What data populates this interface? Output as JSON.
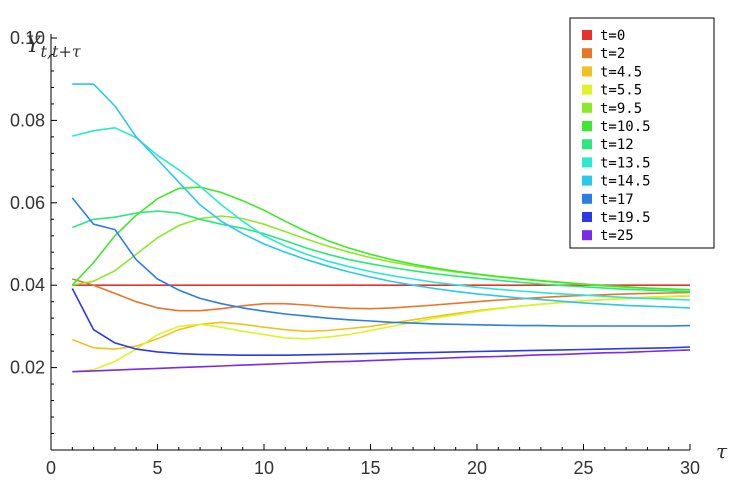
{
  "chart_data": {
    "type": "line",
    "ylabel": "Y",
    "ylabel_sub": "t,t+τ",
    "xlabel": "τ",
    "xlim": [
      0,
      30
    ],
    "ylim": [
      0,
      0.1
    ],
    "xticks": [
      0,
      5,
      10,
      15,
      20,
      25,
      30
    ],
    "yticks": [
      0.02,
      0.04,
      0.06,
      0.08,
      0.1
    ],
    "ytick_labels": [
      "0.02",
      "0.04",
      "0.06",
      "0.08",
      "0.10"
    ],
    "grid": false,
    "legend_position": "top-right",
    "x": [
      1,
      2,
      3,
      4,
      5,
      6,
      7,
      8,
      9,
      10,
      11,
      12,
      13,
      14,
      15,
      16,
      17,
      18,
      19,
      20,
      21,
      22,
      23,
      24,
      25,
      26,
      27,
      28,
      29,
      30
    ],
    "series": [
      {
        "name": "t=0",
        "color": "#e8312a",
        "values": [
          0.04,
          0.04,
          0.04,
          0.04,
          0.04,
          0.04,
          0.04,
          0.04,
          0.04,
          0.04,
          0.04,
          0.04,
          0.04,
          0.04,
          0.04,
          0.04,
          0.04,
          0.04,
          0.04,
          0.04,
          0.04,
          0.04,
          0.04,
          0.04,
          0.04,
          0.04,
          0.04,
          0.04,
          0.04,
          0.04
        ]
      },
      {
        "name": "t=2",
        "color": "#e8762a",
        "values": [
          0.0415,
          0.04,
          0.038,
          0.036,
          0.0345,
          0.0338,
          0.0338,
          0.0343,
          0.035,
          0.0355,
          0.0355,
          0.0352,
          0.0347,
          0.0344,
          0.0343,
          0.0345,
          0.0348,
          0.0352,
          0.0356,
          0.036,
          0.0364,
          0.0367,
          0.037,
          0.0373,
          0.0375,
          0.0377,
          0.0379,
          0.038,
          0.0381,
          0.0382
        ]
      },
      {
        "name": "t=4.5",
        "color": "#f0c21e",
        "values": [
          0.0268,
          0.0248,
          0.0245,
          0.0252,
          0.027,
          0.0292,
          0.0305,
          0.031,
          0.0305,
          0.0298,
          0.0292,
          0.0288,
          0.029,
          0.0295,
          0.03,
          0.0308,
          0.0316,
          0.0324,
          0.0331,
          0.0338,
          0.0344,
          0.0349,
          0.0354,
          0.0358,
          0.0362,
          0.0365,
          0.0368,
          0.037,
          0.0372,
          0.0374
        ]
      },
      {
        "name": "t=5.5",
        "color": "#dff22a",
        "values": [
          0.019,
          0.0195,
          0.0215,
          0.0245,
          0.028,
          0.03,
          0.0305,
          0.0298,
          0.0288,
          0.028,
          0.0272,
          0.027,
          0.0274,
          0.028,
          0.029,
          0.03,
          0.031,
          0.032,
          0.0328,
          0.0336,
          0.0343,
          0.0349,
          0.0354,
          0.0358,
          0.0362,
          0.0365,
          0.0368,
          0.0371,
          0.0373,
          0.0375
        ]
      },
      {
        "name": "t=9.5",
        "color": "#8ee82a",
        "values": [
          0.04,
          0.041,
          0.0435,
          0.0475,
          0.0515,
          0.0545,
          0.0562,
          0.0568,
          0.0562,
          0.0548,
          0.053,
          0.0512,
          0.0495,
          0.048,
          0.0467,
          0.0456,
          0.0447,
          0.0439,
          0.0432,
          0.0426,
          0.042,
          0.0415,
          0.041,
          0.0406,
          0.0402,
          0.0398,
          0.0395,
          0.0392,
          0.039,
          0.0388
        ]
      },
      {
        "name": "t=10.5",
        "color": "#3ee82a",
        "values": [
          0.04,
          0.0455,
          0.052,
          0.057,
          0.061,
          0.0635,
          0.0638,
          0.0625,
          0.0605,
          0.0582,
          0.0555,
          0.053,
          0.0508,
          0.049,
          0.0475,
          0.0462,
          0.0451,
          0.0442,
          0.0434,
          0.0427,
          0.0421,
          0.0416,
          0.0411,
          0.0407,
          0.0403,
          0.0399,
          0.0396,
          0.0393,
          0.0391,
          0.0389
        ]
      },
      {
        "name": "t=12",
        "color": "#2ae87e",
        "values": [
          0.054,
          0.056,
          0.0565,
          0.0575,
          0.058,
          0.0575,
          0.056,
          0.0548,
          0.0538,
          0.0525,
          0.0508,
          0.049,
          0.0475,
          0.0462,
          0.0452,
          0.0443,
          0.0435,
          0.0428,
          0.0422,
          0.0417,
          0.0412,
          0.0407,
          0.0403,
          0.0399,
          0.0396,
          0.0393,
          0.039,
          0.0388,
          0.0386,
          0.0384
        ]
      },
      {
        "name": "t=13.5",
        "color": "#2ae8d2",
        "values": [
          0.0762,
          0.0775,
          0.0782,
          0.0758,
          0.0715,
          0.068,
          0.064,
          0.0595,
          0.0555,
          0.052,
          0.0495,
          0.0475,
          0.0458,
          0.0445,
          0.0433,
          0.0423,
          0.0415,
          0.0407,
          0.0401,
          0.0395,
          0.039,
          0.0386,
          0.0382,
          0.0379,
          0.0376,
          0.0373,
          0.037,
          0.0368,
          0.0366,
          0.0364
        ]
      },
      {
        "name": "t=14.5",
        "color": "#2ac8ec",
        "values": [
          0.0888,
          0.0888,
          0.0835,
          0.076,
          0.0705,
          0.065,
          0.0595,
          0.0555,
          0.0525,
          0.05,
          0.048,
          0.0462,
          0.0446,
          0.0432,
          0.042,
          0.0409,
          0.04,
          0.0392,
          0.0385,
          0.0379,
          0.0374,
          0.0369,
          0.0365,
          0.0361,
          0.0357,
          0.0354,
          0.0351,
          0.0349,
          0.0347,
          0.0345
        ]
      },
      {
        "name": "t=17",
        "color": "#2a7ee8",
        "values": [
          0.0612,
          0.0548,
          0.0535,
          0.0462,
          0.0415,
          0.0388,
          0.0368,
          0.0355,
          0.0345,
          0.0337,
          0.033,
          0.0325,
          0.032,
          0.0316,
          0.0313,
          0.031,
          0.0308,
          0.0306,
          0.0305,
          0.0304,
          0.0303,
          0.0302,
          0.0302,
          0.0301,
          0.0301,
          0.0301,
          0.0301,
          0.0301,
          0.0301,
          0.0302
        ]
      },
      {
        "name": "t=19.5",
        "color": "#2a3ae8",
        "values": [
          0.0392,
          0.0292,
          0.026,
          0.0245,
          0.0238,
          0.0234,
          0.0232,
          0.0231,
          0.023,
          0.023,
          0.023,
          0.0231,
          0.0232,
          0.0233,
          0.0234,
          0.0235,
          0.0236,
          0.0237,
          0.0238,
          0.0239,
          0.024,
          0.0241,
          0.0242,
          0.0243,
          0.0244,
          0.0245,
          0.0246,
          0.0247,
          0.0248,
          0.025
        ]
      },
      {
        "name": "t=25",
        "color": "#7a2ae8",
        "values": [
          0.019,
          0.0192,
          0.0194,
          0.0196,
          0.0198,
          0.02,
          0.0202,
          0.0204,
          0.0206,
          0.0208,
          0.021,
          0.0212,
          0.0214,
          0.0215,
          0.0217,
          0.0219,
          0.0221,
          0.0222,
          0.0224,
          0.0226,
          0.0227,
          0.0229,
          0.0231,
          0.0232,
          0.0234,
          0.0236,
          0.0237,
          0.0239,
          0.0241,
          0.0243
        ]
      }
    ]
  }
}
